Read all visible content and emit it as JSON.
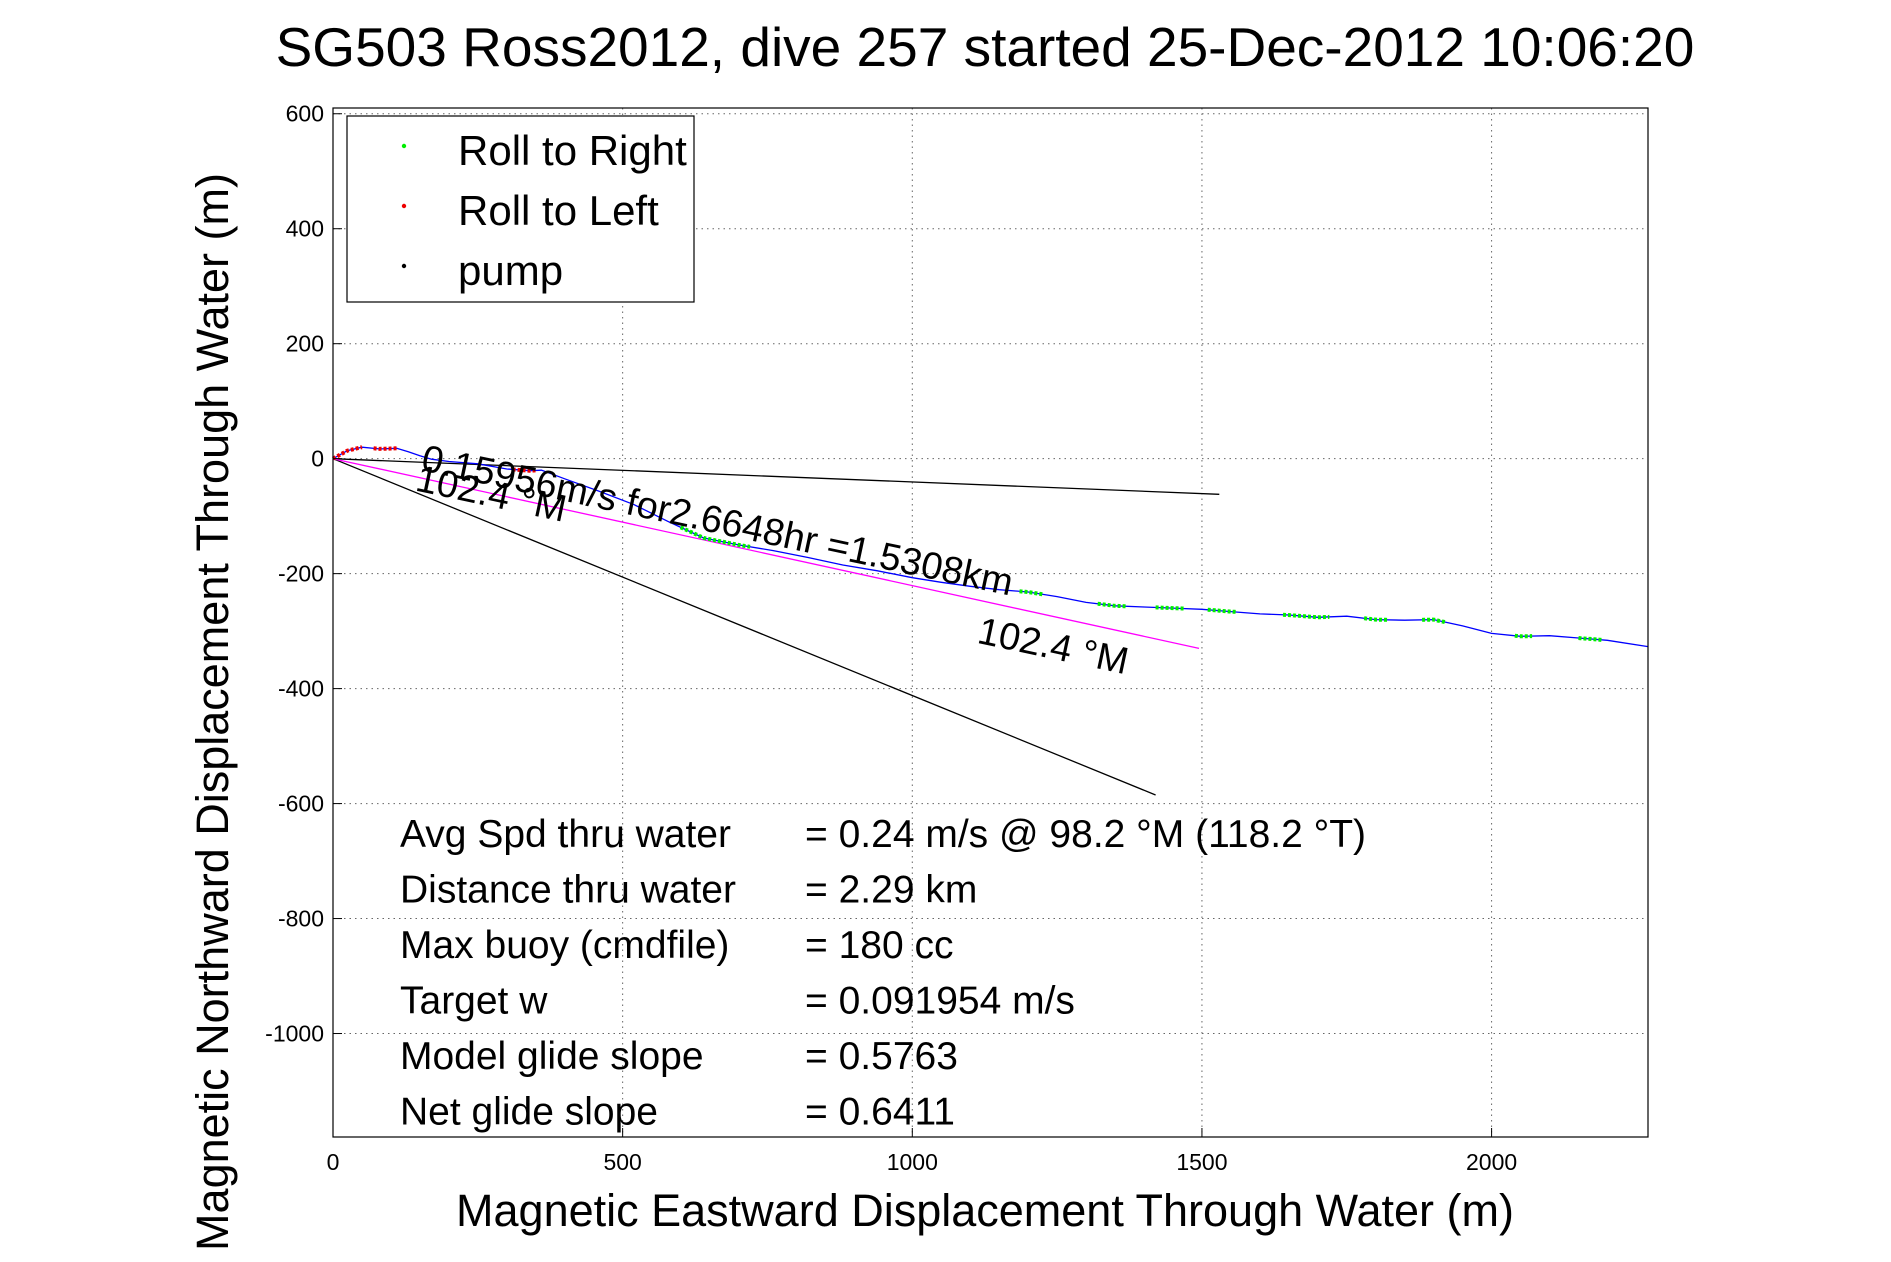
{
  "chart_data": {
    "type": "line",
    "title": "SG503 Ross2012, dive 257 started 25-Dec-2012 10:06:20",
    "xlabel": "Magnetic Eastward Displacement Through Water (m)",
    "ylabel": "Magnetic Northward Displacement Through Water (m)",
    "xlim": [
      0,
      2270
    ],
    "ylim": [
      -1180,
      610
    ],
    "xticks": [
      "0",
      "500",
      "1000",
      "1500",
      "2000"
    ],
    "yticks": [
      "600",
      "400",
      "200",
      "0",
      "-200",
      "-400",
      "-600",
      "-800",
      "-1000"
    ],
    "grid": true,
    "legend": {
      "placement": "top-left",
      "entries": [
        {
          "label": "Roll to Right",
          "color": "#00ee00"
        },
        {
          "label": "Roll to Left",
          "color": "#ee0000"
        },
        {
          "label": "pump",
          "color": "#000000"
        }
      ]
    },
    "track": {
      "color": "#0000ff",
      "x": [
        0,
        25,
        50,
        80,
        110,
        130,
        150,
        170,
        200,
        250,
        300,
        340,
        360,
        400,
        460,
        520,
        580,
        640,
        700,
        760,
        820,
        880,
        940,
        1000,
        1050,
        1100,
        1150,
        1200,
        1250,
        1300,
        1350,
        1400,
        1450,
        1500,
        1550,
        1600,
        1650,
        1700,
        1750,
        1800,
        1850,
        1900,
        1950,
        2000,
        2050,
        2100,
        2150,
        2200,
        2270
      ],
      "y": [
        0,
        14,
        20,
        17,
        18,
        12,
        5,
        -1,
        -5,
        -9,
        -18,
        -21,
        -20,
        -35,
        -57,
        -80,
        -110,
        -138,
        -150,
        -160,
        -172,
        -185,
        -195,
        -207,
        -215,
        -222,
        -228,
        -232,
        -240,
        -250,
        -256,
        -258,
        -260,
        -262,
        -266,
        -270,
        -272,
        -276,
        -274,
        -280,
        -281,
        -280,
        -291,
        -304,
        -309,
        -308,
        -312,
        -316,
        -327
      ]
    },
    "roll_right_segments": [
      {
        "x": [
          600,
          720
        ],
        "y": [
          -125,
          -148
        ]
      },
      {
        "x": [
          1185,
          1225
        ],
        "y": [
          -228,
          -232
        ]
      },
      {
        "x": [
          1320,
          1370
        ],
        "y": [
          -250,
          -256
        ]
      },
      {
        "x": [
          1420,
          1470
        ],
        "y": [
          -258,
          -260
        ]
      },
      {
        "x": [
          1510,
          1560
        ],
        "y": [
          -262,
          -266
        ]
      },
      {
        "x": [
          1640,
          1720
        ],
        "y": [
          -270,
          -272
        ]
      },
      {
        "x": [
          1780,
          1820
        ],
        "y": [
          -276,
          -278
        ]
      },
      {
        "x": [
          1880,
          1920
        ],
        "y": [
          -280,
          -281
        ]
      },
      {
        "x": [
          2040,
          2070
        ],
        "y": [
          -306,
          -309
        ]
      },
      {
        "x": [
          2150,
          2190
        ],
        "y": [
          -310,
          -313
        ]
      }
    ],
    "roll_left_segments": [
      {
        "x": [
          0,
          50
        ],
        "y": [
          0,
          20
        ]
      },
      {
        "x": [
          70,
          110
        ],
        "y": [
          17,
          18
        ]
      },
      {
        "x": [
          310,
          350
        ],
        "y": [
          -18,
          -21
        ]
      }
    ],
    "reference_lines": [
      {
        "color": "#000000",
        "x": [
          0,
          1530
        ],
        "y": [
          0,
          -62
        ]
      },
      {
        "color": "#000000",
        "x": [
          0,
          1420
        ],
        "y": [
          0,
          -585
        ]
      },
      {
        "color": "#ff00ff",
        "x": [
          0,
          1495
        ],
        "y": [
          0,
          -330
        ]
      }
    ],
    "annotations": [
      {
        "text": "0.15956m/s for2.6648hr =1.5308km",
        "x": 150,
        "y": -20,
        "rotate": 12
      },
      {
        "text": "102.4 °M",
        "x": 140,
        "y": -55,
        "rotate": 12
      },
      {
        "text": "102.4 °M",
        "x": 1110,
        "y": -320,
        "rotate": 12
      }
    ],
    "stats": [
      {
        "label": "Avg Spd thru water",
        "value": "=  0.24 m/s @  98.2 °M (118.2 °T)"
      },
      {
        "label": "Distance thru water",
        "value": "=  2.29 km"
      },
      {
        "label": "Max buoy (cmdfile)",
        "value": "= 180 cc"
      },
      {
        "label": "Target w",
        "value": "= 0.091954 m/s"
      },
      {
        "label": "Model glide slope",
        "value": "= 0.5763"
      },
      {
        "label": "Net glide slope",
        "value": "= 0.6411"
      }
    ]
  }
}
